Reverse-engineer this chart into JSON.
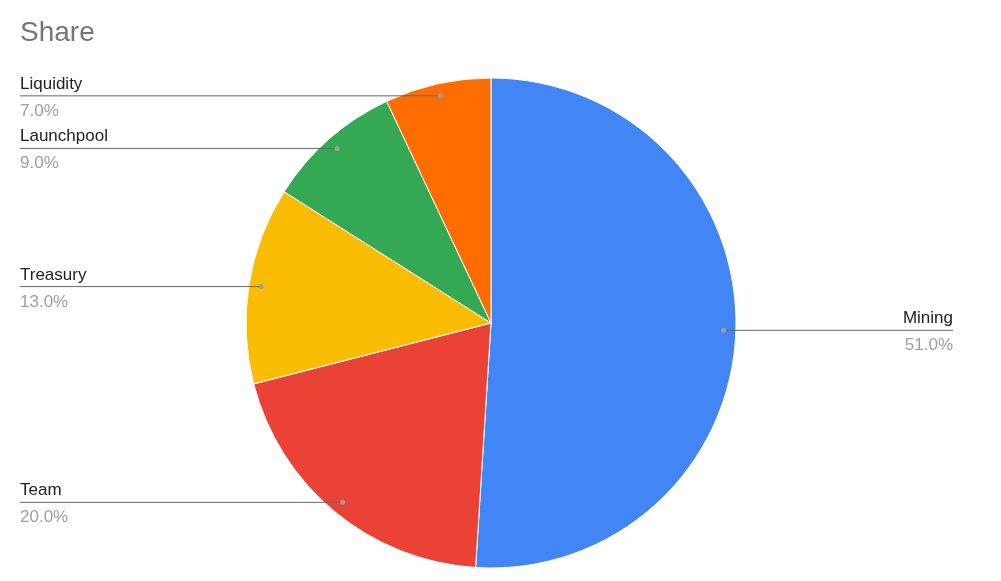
{
  "chart_data": {
    "type": "pie",
    "title": "Share",
    "categories": [
      "Mining",
      "Team",
      "Treasury",
      "Launchpool",
      "Liquidity"
    ],
    "values": [
      51,
      20,
      13,
      9,
      7
    ],
    "colors": [
      "#4285f4",
      "#ea4335",
      "#fbbc04",
      "#34a853",
      "#ff6d01"
    ],
    "value_labels": [
      "51.0%",
      "20.0%",
      "13.0%",
      "9.0%",
      "7.0%"
    ],
    "legend": false
  }
}
